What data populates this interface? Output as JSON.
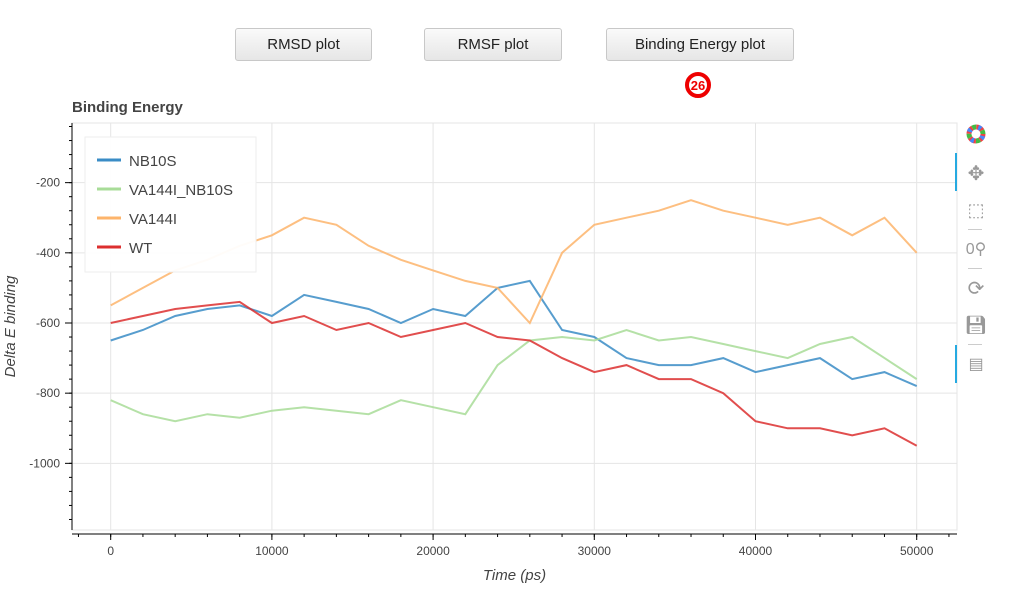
{
  "buttons": [
    {
      "label": "RMSD plot"
    },
    {
      "label": "RMSF plot"
    },
    {
      "label": "Binding Energy plot"
    }
  ],
  "badge": "26",
  "toolbar": [
    "bokeh-logo-icon",
    "pan-icon",
    "box-zoom-icon",
    "wheel-zoom-icon",
    "reset-icon",
    "save-icon",
    "hover-icon"
  ],
  "chart_data": {
    "type": "line",
    "title": "Binding Energy",
    "xlabel": "Time (ps)",
    "ylabel": "Delta E binding",
    "xlim": [
      -2400,
      52500
    ],
    "ylim": [
      -1190,
      -30
    ],
    "xticks": [
      0,
      10000,
      20000,
      30000,
      40000,
      50000
    ],
    "yticks": [
      -1000,
      -800,
      -600,
      -400,
      -200
    ],
    "grid": true,
    "legend_position": "top-left",
    "x": [
      0,
      2000,
      4000,
      6000,
      8000,
      10000,
      12000,
      14000,
      16000,
      18000,
      20000,
      22000,
      24000,
      26000,
      28000,
      30000,
      32000,
      34000,
      36000,
      38000,
      40000,
      42000,
      44000,
      46000,
      48000,
      50000
    ],
    "series": [
      {
        "name": "NB10S",
        "color": "#3a8cc6",
        "values": [
          -650,
          -620,
          -580,
          -560,
          -550,
          -580,
          -520,
          -540,
          -560,
          -600,
          -560,
          -580,
          -500,
          -480,
          -620,
          -640,
          -700,
          -720,
          -720,
          -700,
          -740,
          -720,
          -700,
          -760,
          -740,
          -780
        ]
      },
      {
        "name": "VA144I_NB10S",
        "color": "#a8dc98",
        "values": [
          -820,
          -860,
          -880,
          -860,
          -870,
          -850,
          -840,
          -850,
          -860,
          -820,
          -840,
          -860,
          -720,
          -650,
          -640,
          -650,
          -620,
          -650,
          -640,
          -660,
          -680,
          -700,
          -660,
          -640,
          -700,
          -760
        ]
      },
      {
        "name": "VA144I",
        "color": "#fdb46b",
        "values": [
          -550,
          -500,
          -450,
          -420,
          -380,
          -350,
          -300,
          -320,
          -380,
          -420,
          -450,
          -480,
          -500,
          -600,
          -400,
          -320,
          -300,
          -280,
          -250,
          -280,
          -300,
          -320,
          -300,
          -350,
          -300,
          -400
        ]
      },
      {
        "name": "WT",
        "color": "#dc2f2f",
        "values": [
          -600,
          -580,
          -560,
          -550,
          -540,
          -600,
          -580,
          -620,
          -600,
          -640,
          -620,
          -600,
          -640,
          -650,
          -700,
          -740,
          -720,
          -760,
          -760,
          -800,
          -880,
          -900,
          -900,
          -920,
          -900,
          -950
        ]
      }
    ]
  }
}
